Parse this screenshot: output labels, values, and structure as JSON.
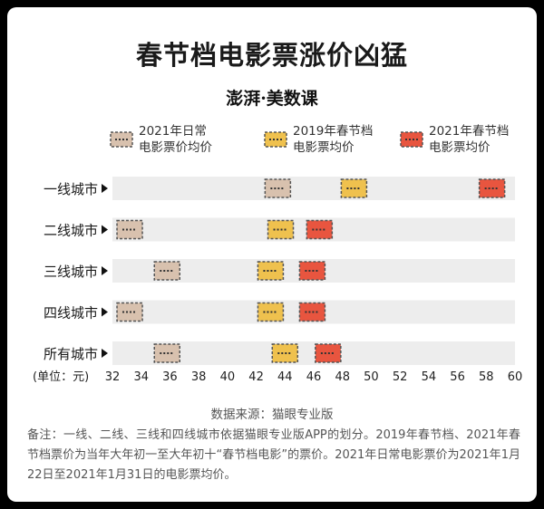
{
  "title": "春节档电影票涨价凶猛",
  "brand": "澎湃·美数课",
  "legend": [
    {
      "label": "2021年日常\n电影票价均价",
      "color": "#d8c1ae"
    },
    {
      "label": "2019年春节档\n电影票均价",
      "color": "#efc14e"
    },
    {
      "label": "2021年春节档\n电影票均价",
      "color": "#e8553f"
    }
  ],
  "chart_data": {
    "type": "dot",
    "categories": [
      "一线城市",
      "二线城市",
      "三线城市",
      "四线城市",
      "所有城市"
    ],
    "series": [
      {
        "name": "2021年日常电影票价均价",
        "values": [
          43.5,
          33.2,
          35.8,
          33.2,
          35.8
        ]
      },
      {
        "name": "2019年春节档电影票均价",
        "values": [
          48.8,
          43.7,
          43.0,
          43.0,
          44.0
        ]
      },
      {
        "name": "2021年春节档电影票均价",
        "values": [
          58.4,
          46.4,
          45.9,
          45.9,
          47.0
        ]
      }
    ],
    "xlabel": "(单位：元)",
    "xlim": [
      32,
      60
    ],
    "xticks": [
      32,
      34,
      36,
      38,
      40,
      42,
      44,
      46,
      48,
      50,
      52,
      54,
      56,
      58,
      60
    ]
  },
  "source": "数据来源：猫眼专业版",
  "note": "备注：一线、二线、三线和四线城市依据猫眼专业版APP的划分。2019年春节档、2021年春节档票价为当年大年初一至大年初十“春节档电影”的票价。2021年日常电影票价为2021年1月22日至2021年1月31日的电影票均价。"
}
